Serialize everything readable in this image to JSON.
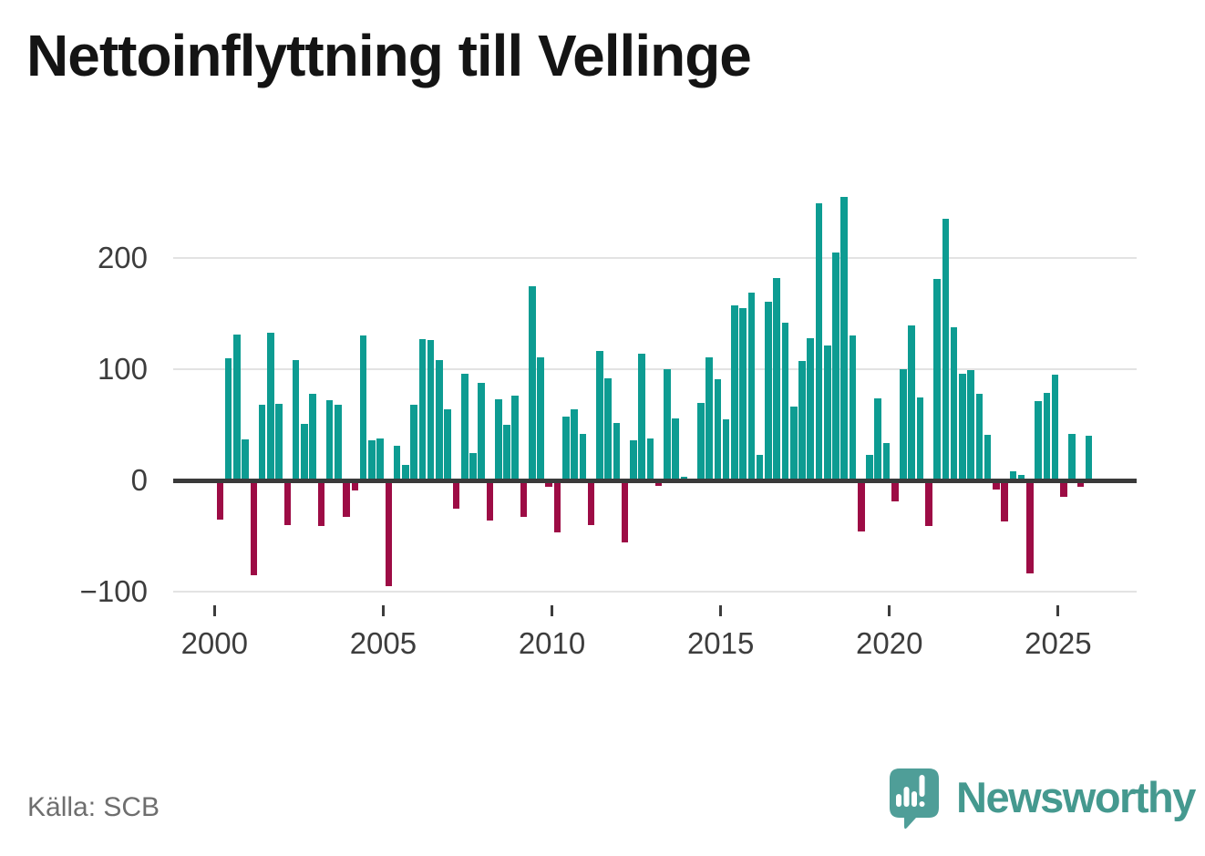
{
  "chart_data": {
    "type": "bar",
    "title": "Nettoinflyttning till Vellinge",
    "source": "Källa: SCB",
    "x_axis": {
      "tick_labels": [
        "2000",
        "2005",
        "2010",
        "2015",
        "2020",
        "2025"
      ],
      "start_year": 2000,
      "end_year": 2025,
      "bars_per_year": 4
    },
    "y_axis": {
      "tick_labels": [
        "200",
        "100",
        "0",
        "−100"
      ],
      "gridline_values": [
        200,
        100,
        0,
        -100
      ],
      "ylim": [
        -110,
        268
      ]
    },
    "grid": "horizontal",
    "legend": "none",
    "positive_color": "#0d9c92",
    "negative_color": "#9d0c45",
    "values_by_year": [
      {
        "year": 2000,
        "q": [
          -35,
          110,
          131,
          37
        ]
      },
      {
        "year": 2001,
        "q": [
          -85,
          68,
          133,
          69
        ]
      },
      {
        "year": 2002,
        "q": [
          -40,
          108,
          51,
          78
        ]
      },
      {
        "year": 2003,
        "q": [
          -41,
          72,
          68,
          -33
        ]
      },
      {
        "year": 2004,
        "q": [
          -9,
          130,
          36,
          38
        ]
      },
      {
        "year": 2005,
        "q": [
          -95,
          31,
          14,
          68
        ]
      },
      {
        "year": 2006,
        "q": [
          127,
          126,
          108,
          64
        ]
      },
      {
        "year": 2007,
        "q": [
          -25,
          96,
          25,
          88
        ]
      },
      {
        "year": 2008,
        "q": [
          -36,
          73,
          50,
          76
        ]
      },
      {
        "year": 2009,
        "q": [
          -33,
          175,
          111,
          -6
        ]
      },
      {
        "year": 2010,
        "q": [
          -47,
          57,
          64,
          42
        ]
      },
      {
        "year": 2011,
        "q": [
          -40,
          116,
          92,
          52
        ]
      },
      {
        "year": 2012,
        "q": [
          -56,
          36,
          114,
          38
        ]
      },
      {
        "year": 2013,
        "q": [
          -5,
          100,
          56,
          3
        ]
      },
      {
        "year": 2014,
        "q": [
          0,
          70,
          111,
          91
        ]
      },
      {
        "year": 2015,
        "q": [
          55,
          157,
          155,
          169
        ]
      },
      {
        "year": 2016,
        "q": [
          23,
          161,
          182,
          142
        ]
      },
      {
        "year": 2017,
        "q": [
          66,
          107,
          128,
          249
        ]
      },
      {
        "year": 2018,
        "q": [
          121,
          205,
          255,
          130
        ]
      },
      {
        "year": 2019,
        "q": [
          -46,
          23,
          74,
          34
        ]
      },
      {
        "year": 2020,
        "q": [
          -19,
          100,
          139,
          75
        ]
      },
      {
        "year": 2021,
        "q": [
          -41,
          181,
          235,
          138
        ]
      },
      {
        "year": 2022,
        "q": [
          96,
          99,
          78,
          41
        ]
      },
      {
        "year": 2023,
        "q": [
          -8,
          -37,
          8,
          5
        ]
      },
      {
        "year": 2024,
        "q": [
          -84,
          71,
          79,
          95
        ]
      },
      {
        "year": 2025,
        "q": [
          -15,
          42,
          -6,
          40
        ]
      }
    ]
  },
  "footer": {
    "brand_text": "Newsworthy",
    "brand_icon": "speech-bubble-bar-chart-icon"
  },
  "colors": {
    "background": "#ffffff",
    "title_text": "#141414",
    "axis_text": "#3d3d3d",
    "gridline": "#e3e3e3",
    "zero_axis": "#3a3a3a",
    "source_text": "#6e6e6e",
    "brand_bubble": "#4f9e98",
    "brand_text": "#45998f"
  }
}
